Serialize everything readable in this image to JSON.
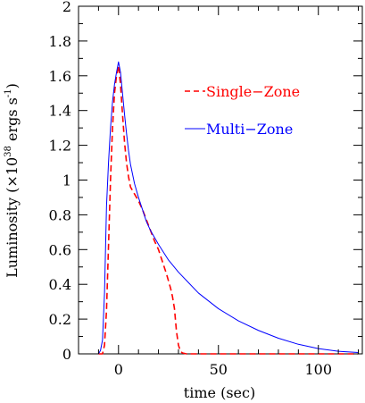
{
  "chart_data": {
    "type": "line",
    "xlabel": "time (sec)",
    "ylabel_main": "Luminosity (×10",
    "ylabel_exp": "38",
    "ylabel_tail": " ergs s",
    "ylabel_exp2": "-1",
    "ylabel_end": ")",
    "xlim": [
      -20,
      122
    ],
    "ylim": [
      0,
      2
    ],
    "x_ticks_major": [
      0,
      50,
      100
    ],
    "x_tick_labels": [
      "0",
      "50",
      "100"
    ],
    "x_ticks_minor": [
      -10,
      10,
      20,
      30,
      40,
      60,
      70,
      80,
      90,
      110,
      120
    ],
    "y_ticks_major": [
      0,
      0.2,
      0.4,
      0.6,
      0.8,
      1.0,
      1.2,
      1.4,
      1.6,
      1.8,
      2.0
    ],
    "y_tick_labels": [
      "0",
      "0.2",
      "0.4",
      "0.6",
      "0.8",
      "1",
      "1.2",
      "1.4",
      "1.6",
      "1.8",
      "2"
    ],
    "y_ticks_minor": [
      0.1,
      0.3,
      0.5,
      0.7,
      0.9,
      1.1,
      1.3,
      1.5,
      1.7,
      1.9
    ],
    "legend_placement": "top-right",
    "series": [
      {
        "name": "Single−Zone",
        "style": "dashed",
        "color": "#ff0000",
        "x": [
          -10,
          -8,
          -7,
          -6,
          -5,
          -4,
          -3,
          -2,
          -1,
          0,
          1,
          2,
          3,
          4,
          5,
          6,
          8,
          10,
          12,
          14,
          16,
          18,
          20,
          22,
          24,
          26,
          27,
          28,
          29,
          30,
          31,
          32,
          34,
          40,
          60,
          80,
          100,
          120
        ],
        "y": [
          0.0,
          0.0,
          0.05,
          0.25,
          0.62,
          1.0,
          1.3,
          1.5,
          1.6,
          1.66,
          1.55,
          1.38,
          1.22,
          1.1,
          1.02,
          0.96,
          0.92,
          0.88,
          0.83,
          0.77,
          0.71,
          0.65,
          0.6,
          0.53,
          0.46,
          0.38,
          0.33,
          0.26,
          0.13,
          0.05,
          0.015,
          0.005,
          0.0,
          0.0,
          0.0,
          0.0,
          0.0,
          0.0
        ]
      },
      {
        "name": "Multi−Zone",
        "style": "solid",
        "color": "#0000ff",
        "x": [
          -10,
          -9,
          -8,
          -7,
          -6,
          -5,
          -4,
          -3,
          -2,
          -1,
          0,
          1,
          2,
          3,
          4,
          5,
          6,
          8,
          10,
          12,
          14,
          16,
          18,
          20,
          25,
          30,
          35,
          40,
          50,
          60,
          70,
          80,
          90,
          100,
          110,
          120
        ],
        "y": [
          0.0,
          0.02,
          0.08,
          0.35,
          0.85,
          1.1,
          1.3,
          1.45,
          1.55,
          1.62,
          1.68,
          1.62,
          1.5,
          1.38,
          1.27,
          1.17,
          1.09,
          0.98,
          0.9,
          0.83,
          0.76,
          0.71,
          0.67,
          0.63,
          0.54,
          0.47,
          0.41,
          0.35,
          0.26,
          0.19,
          0.135,
          0.09,
          0.055,
          0.03,
          0.015,
          0.008
        ]
      }
    ]
  }
}
